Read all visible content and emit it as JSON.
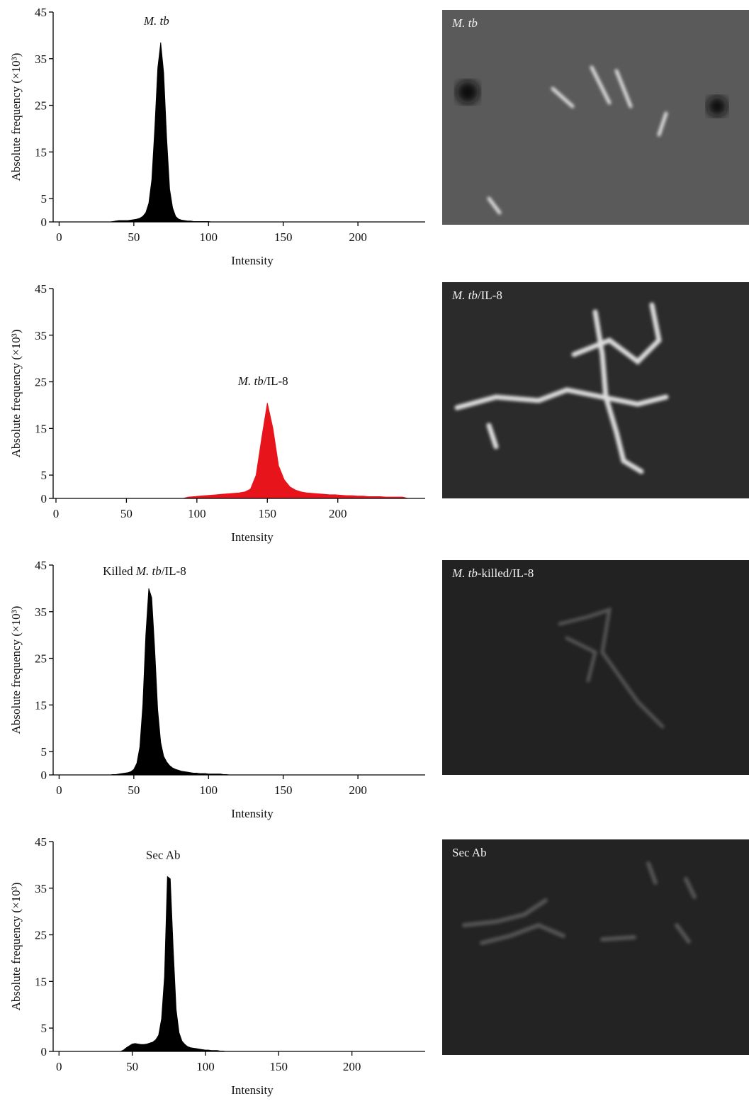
{
  "chart_data": [
    {
      "type": "area",
      "title": [
        {
          "text": "M. tb",
          "italic": true
        }
      ],
      "x_label": "Intensity",
      "y_label": "Absolute frequency (×10³)",
      "color": "#000000",
      "x": [
        30,
        32,
        34,
        36,
        38,
        40,
        42,
        44,
        46,
        48,
        50,
        52,
        54,
        56,
        58,
        60,
        62,
        64,
        66,
        68,
        70,
        72,
        74,
        76,
        78,
        80,
        82,
        84,
        86,
        88,
        90,
        92,
        94,
        96,
        98,
        100,
        102,
        104,
        106,
        108,
        110
      ],
      "values": [
        0,
        0,
        0,
        0.1,
        0.2,
        0.3,
        0.3,
        0.3,
        0.3,
        0.4,
        0.5,
        0.6,
        0.8,
        1.2,
        2,
        4,
        9,
        20,
        33,
        38.5,
        32,
        18,
        7,
        3,
        1.2,
        0.6,
        0.4,
        0.3,
        0.2,
        0.2,
        0.1,
        0.1,
        0.1,
        0.1,
        0.1,
        0.1,
        0,
        0,
        0,
        0,
        0
      ],
      "xlim": [
        -4,
        245
      ],
      "xticks": [
        0,
        50,
        100,
        150,
        200
      ],
      "ylim": [
        0,
        45
      ],
      "yticks": [
        0,
        5,
        15,
        25,
        35,
        45
      ]
    },
    {
      "type": "area",
      "title": [
        {
          "text": "M. tb",
          "italic": true
        },
        {
          "text": "/IL-8",
          "italic": false
        }
      ],
      "x_label": "Intensity",
      "y_label": "Absolute frequency (×10³)",
      "color": "#e8141b",
      "x": [
        90,
        94,
        98,
        102,
        106,
        110,
        114,
        118,
        122,
        126,
        130,
        134,
        138,
        142,
        146,
        150,
        154,
        158,
        162,
        166,
        170,
        174,
        178,
        182,
        186,
        190,
        194,
        198,
        202,
        206,
        210,
        214,
        218,
        222,
        226,
        230,
        234,
        238,
        242,
        246,
        250
      ],
      "values": [
        0,
        0.3,
        0.4,
        0.5,
        0.6,
        0.7,
        0.8,
        0.9,
        1.0,
        1.1,
        1.2,
        1.4,
        2,
        5,
        13,
        20.5,
        15,
        7,
        4,
        2.5,
        1.8,
        1.4,
        1.2,
        1.1,
        1.0,
        0.9,
        0.8,
        0.8,
        0.7,
        0.6,
        0.6,
        0.5,
        0.5,
        0.4,
        0.4,
        0.4,
        0.3,
        0.3,
        0.3,
        0.3,
        0
      ],
      "xlim": [
        -2,
        262
      ],
      "xticks": [
        0,
        50,
        100,
        150,
        200
      ],
      "ylim": [
        0,
        45
      ],
      "yticks": [
        0,
        5,
        15,
        25,
        35,
        45
      ]
    },
    {
      "type": "area",
      "title": [
        {
          "text": "Killed ",
          "italic": false
        },
        {
          "text": "M. tb",
          "italic": true
        },
        {
          "text": "/IL-8",
          "italic": false
        }
      ],
      "x_label": "Intensity",
      "y_label": "Absolute frequency (×10³)",
      "color": "#000000",
      "x": [
        30,
        32,
        34,
        36,
        38,
        40,
        42,
        44,
        46,
        48,
        50,
        52,
        54,
        56,
        58,
        60,
        62,
        64,
        66,
        68,
        70,
        72,
        74,
        76,
        78,
        80,
        82,
        84,
        86,
        88,
        90,
        92,
        94,
        96,
        98,
        100,
        102,
        104,
        106,
        108,
        110,
        112,
        114,
        116,
        118,
        120
      ],
      "values": [
        0,
        0,
        0,
        0.1,
        0.1,
        0.2,
        0.3,
        0.4,
        0.5,
        0.7,
        1.2,
        2.5,
        6,
        15,
        30,
        40,
        38,
        27,
        14,
        7,
        4,
        2.8,
        2,
        1.5,
        1.2,
        1,
        0.8,
        0.7,
        0.6,
        0.5,
        0.4,
        0.4,
        0.3,
        0.3,
        0.3,
        0.2,
        0.2,
        0.2,
        0.2,
        0.2,
        0.1,
        0.1,
        0,
        0,
        0,
        0
      ],
      "xlim": [
        -4,
        245
      ],
      "xticks": [
        0,
        50,
        100,
        150,
        200
      ],
      "ylim": [
        0,
        45
      ],
      "yticks": [
        0,
        5,
        15,
        25,
        35,
        45
      ]
    },
    {
      "type": "area",
      "title": [
        {
          "text": "Sec Ab",
          "italic": false
        }
      ],
      "x_label": "Intensity",
      "y_label": "Absolute frequency (×10³)",
      "color": "#000000",
      "x": [
        40,
        42,
        44,
        46,
        48,
        50,
        52,
        54,
        56,
        58,
        60,
        62,
        64,
        66,
        68,
        70,
        72,
        74,
        76,
        78,
        80,
        82,
        84,
        86,
        88,
        90,
        92,
        94,
        96,
        98,
        100,
        102,
        104,
        106,
        108,
        110,
        112,
        114,
        116
      ],
      "values": [
        0,
        0,
        0.3,
        0.8,
        1.2,
        1.6,
        1.7,
        1.6,
        1.5,
        1.5,
        1.6,
        1.8,
        2,
        2.5,
        3.5,
        7,
        16,
        37.5,
        37,
        22,
        9,
        4,
        2.2,
        1.5,
        1,
        0.8,
        0.7,
        0.6,
        0.5,
        0.4,
        0.3,
        0.3,
        0.2,
        0.2,
        0.2,
        0.1,
        0.1,
        0,
        0
      ],
      "xlim": [
        -4,
        250
      ],
      "xticks": [
        0,
        50,
        100,
        150,
        200
      ],
      "ylim": [
        0,
        45
      ],
      "yticks": [
        0,
        5,
        15,
        25,
        35,
        45
      ]
    }
  ],
  "images": [
    {
      "label": [
        {
          "text": "M. tb",
          "italic": true
        }
      ]
    },
    {
      "label": [
        {
          "text": "M. tb",
          "italic": true
        },
        {
          "text": "/IL-8",
          "italic": false
        }
      ]
    },
    {
      "label": [
        {
          "text": "M. tb",
          "italic": true
        },
        {
          "text": "-killed/IL-8",
          "italic": false
        }
      ]
    },
    {
      "label": [
        {
          "text": "Sec Ab",
          "italic": false
        }
      ]
    }
  ]
}
